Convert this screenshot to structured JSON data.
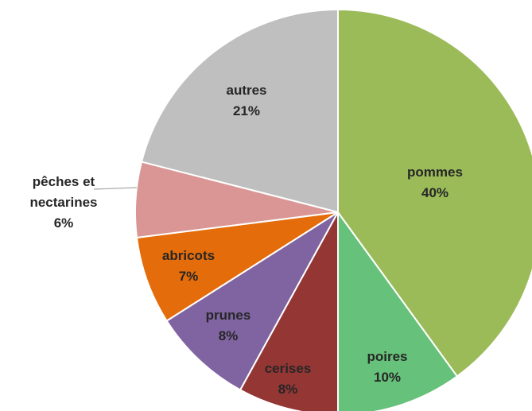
{
  "chart_data": {
    "type": "pie",
    "categories": [
      "pommes",
      "poires",
      "cerises",
      "prunes",
      "abricots",
      "pêches et nectarines",
      "autres"
    ],
    "values": [
      40,
      10,
      8,
      8,
      7,
      6,
      21
    ],
    "value_labels": [
      "40%",
      "10%",
      "8%",
      "8%",
      "7%",
      "6%",
      "21%"
    ],
    "colors": [
      "#9bbb59",
      "#66c17a",
      "#943634",
      "#8064a2",
      "#e46c0a",
      "#d99694",
      "#bfbfbf"
    ]
  }
}
